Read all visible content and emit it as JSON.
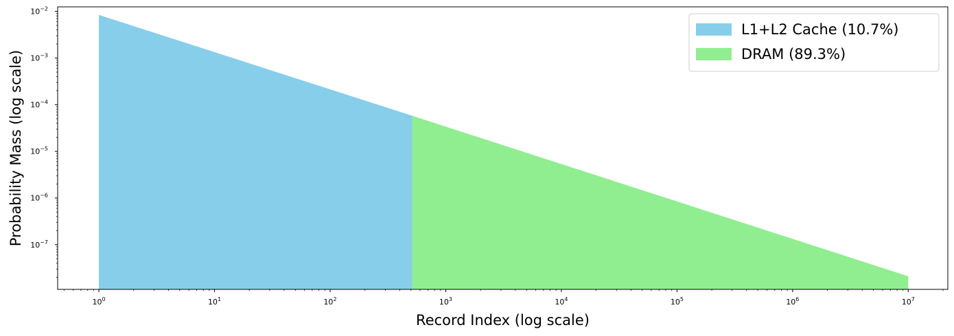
{
  "chart_data": {
    "type": "area",
    "title": "",
    "xlabel": "Record Index (log scale)",
    "ylabel": "Probability Mass (log scale)",
    "x_scale": "log",
    "y_scale": "log",
    "xlim": [
      0.44,
      22000000
    ],
    "ylim": [
      1.1e-08,
      0.0125
    ],
    "x_ticks": [
      {
        "base": "10",
        "exp": "0",
        "value": 1
      },
      {
        "base": "10",
        "exp": "1",
        "value": 10
      },
      {
        "base": "10",
        "exp": "2",
        "value": 100
      },
      {
        "base": "10",
        "exp": "3",
        "value": 1000
      },
      {
        "base": "10",
        "exp": "4",
        "value": 10000
      },
      {
        "base": "10",
        "exp": "5",
        "value": 100000
      },
      {
        "base": "10",
        "exp": "6",
        "value": 1000000
      },
      {
        "base": "10",
        "exp": "7",
        "value": 10000000
      }
    ],
    "y_ticks": [
      {
        "base": "10",
        "exp": "−7",
        "value": 1e-07
      },
      {
        "base": "10",
        "exp": "−6",
        "value": 1e-06
      },
      {
        "base": "10",
        "exp": "−5",
        "value": 1e-05
      },
      {
        "base": "10",
        "exp": "−4",
        "value": 0.0001
      },
      {
        "base": "10",
        "exp": "−3",
        "value": 0.001
      },
      {
        "base": "10",
        "exp": "−2",
        "value": 0.01
      }
    ],
    "grid": false,
    "legend_position": "top-right",
    "series": [
      {
        "name": "L1+L2 Cache (10.7%)",
        "color": "#87CEEB",
        "x_range": [
          1,
          512
        ],
        "y_range": [
          0.0084,
          5.8e-05
        ]
      },
      {
        "name": "DRAM (89.3%)",
        "color": "#90EE90",
        "x_range": [
          512,
          10000000
        ],
        "y_range": [
          5.8e-05,
          2.1e-08
        ]
      }
    ]
  }
}
